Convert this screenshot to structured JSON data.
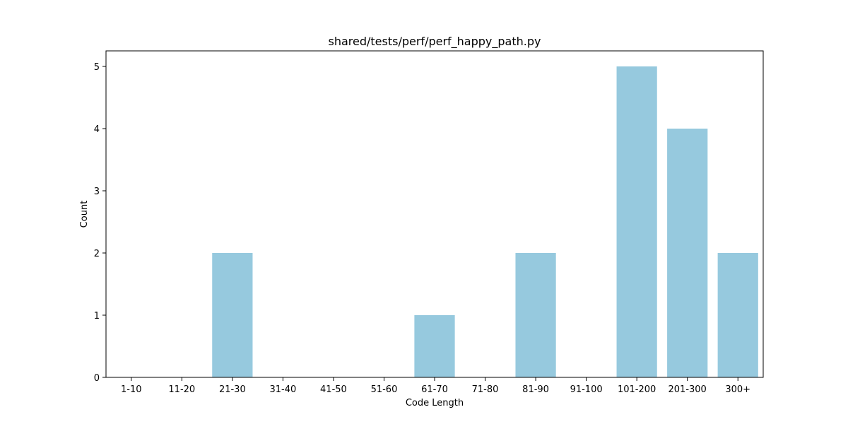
{
  "chart_data": {
    "type": "bar",
    "title": "shared/tests/perf/perf_happy_path.py",
    "xlabel": "Code Length",
    "ylabel": "Count",
    "categories": [
      "1-10",
      "11-20",
      "21-30",
      "31-40",
      "41-50",
      "51-60",
      "61-70",
      "71-80",
      "81-90",
      "91-100",
      "101-200",
      "201-300",
      "300+"
    ],
    "values": [
      0,
      0,
      2,
      0,
      0,
      0,
      1,
      0,
      2,
      0,
      5,
      4,
      2
    ],
    "ylim": [
      0,
      5.25
    ],
    "yticks": [
      0,
      1,
      2,
      3,
      4,
      5
    ],
    "bar_color": "#96c9de",
    "grid": false,
    "legend": "none"
  }
}
